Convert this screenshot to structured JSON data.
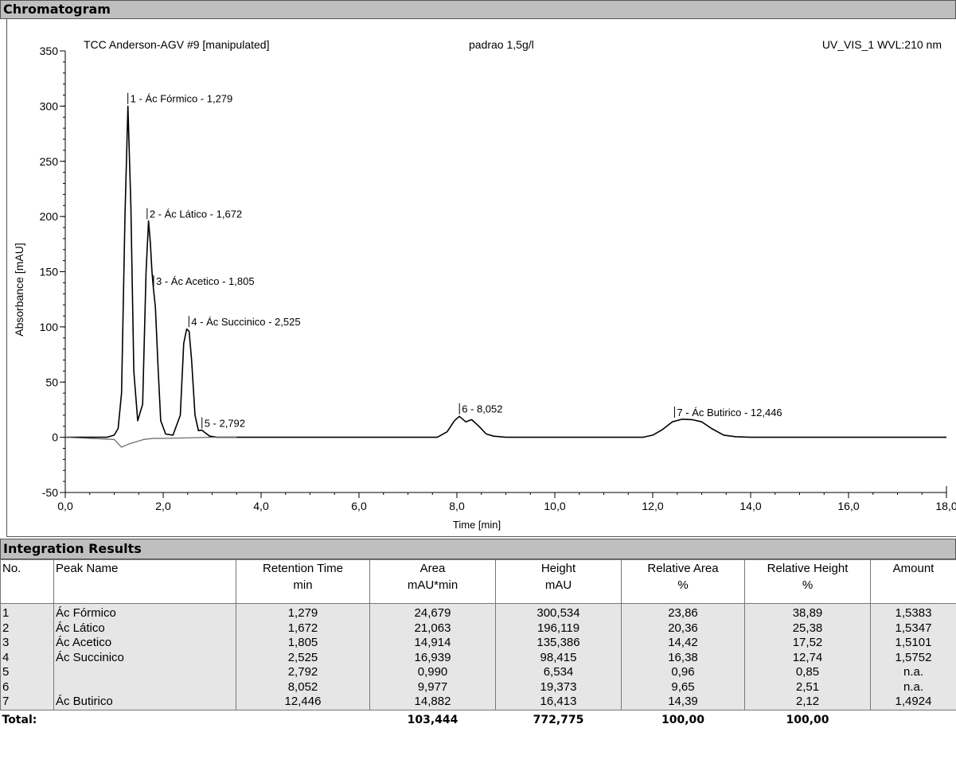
{
  "sections": {
    "chromatogram_title": "Chromatogram",
    "integration_title": "Integration Results"
  },
  "chart_data": {
    "type": "line",
    "header_left": "TCC Anderson-AGV #9 [manipulated]",
    "header_center": "padrao 1,5g/l",
    "header_right": "UV_VIS_1 WVL:210 nm",
    "xlabel": "Time [min]",
    "ylabel": "Absorbance [mAU]",
    "xlim": [
      0,
      18
    ],
    "ylim": [
      -50,
      350
    ],
    "x_ticks": [
      "0,0",
      "2,0",
      "4,0",
      "6,0",
      "8,0",
      "10,0",
      "12,0",
      "14,0",
      "16,0",
      "18,0"
    ],
    "y_ticks": [
      "-50",
      "0",
      "50",
      "100",
      "150",
      "200",
      "250",
      "300",
      "350"
    ],
    "series": [
      {
        "x": [
          0,
          0.85,
          1.0,
          1.08,
          1.15,
          1.22,
          1.28,
          1.34,
          1.4,
          1.48,
          1.58,
          1.65,
          1.7,
          1.74,
          1.77,
          1.8,
          1.84,
          1.9,
          1.95,
          2.05,
          2.2,
          2.35,
          2.42,
          2.48,
          2.53,
          2.58,
          2.65,
          2.72,
          2.79,
          2.86,
          2.95,
          3.1,
          4.0,
          6.0,
          7.6,
          7.8,
          7.95,
          8.05,
          8.18,
          8.3,
          8.45,
          8.6,
          8.75,
          9.0,
          10.0,
          11.0,
          11.8,
          12.0,
          12.2,
          12.4,
          12.6,
          12.8,
          13.0,
          13.2,
          13.45,
          13.7,
          14.0,
          16.0,
          18.0
        ],
        "y": [
          0,
          0,
          2,
          8,
          40,
          200,
          300,
          210,
          60,
          15,
          30,
          150,
          196,
          175,
          150,
          135,
          118,
          60,
          15,
          3,
          2,
          20,
          85,
          98,
          96,
          70,
          20,
          6,
          6.5,
          4,
          1,
          0,
          0,
          0,
          0,
          5,
          15,
          19,
          14,
          16,
          10,
          3,
          1,
          0,
          0,
          0,
          0,
          2,
          7,
          14,
          16.4,
          16,
          14,
          8,
          2,
          0.5,
          0,
          0,
          0
        ]
      },
      {
        "x": [
          0,
          1.0,
          1.15,
          1.3,
          1.45,
          1.6,
          1.8,
          2.0,
          2.5,
          3.0,
          3.5
        ],
        "y": [
          0,
          -2,
          -9,
          -6,
          -4,
          -2,
          -1,
          -1,
          -0.5,
          0,
          0
        ]
      }
    ],
    "peak_labels": [
      {
        "text": "1 - Ác Fórmico - 1,279",
        "x": 1.279,
        "y": 300.5
      },
      {
        "text": "2 - Ác Lático - 1,672",
        "x": 1.672,
        "y": 196.1
      },
      {
        "text": "3 - Ác Acetico - 1,805",
        "x": 1.805,
        "y": 135.4
      },
      {
        "text": "4 - Ác Succinico - 2,525",
        "x": 2.525,
        "y": 98.4
      },
      {
        "text": "5 - 2,792",
        "x": 2.792,
        "y": 6.5
      },
      {
        "text": "6 - 8,052",
        "x": 8.052,
        "y": 19.4
      },
      {
        "text": "7 - Ác Butirico - 12,446",
        "x": 12.446,
        "y": 16.4
      }
    ]
  },
  "table": {
    "headers": [
      [
        "No.",
        ""
      ],
      [
        "Peak Name",
        ""
      ],
      [
        "Retention Time",
        "min"
      ],
      [
        "Area",
        "mAU*min"
      ],
      [
        "Height",
        "mAU"
      ],
      [
        "Relative Area",
        "%"
      ],
      [
        "Relative Height",
        "%"
      ],
      [
        "Amount",
        ""
      ]
    ],
    "rows": [
      [
        "1",
        "Ác Fórmico",
        "1,279",
        "24,679",
        "300,534",
        "23,86",
        "38,89",
        "1,5383"
      ],
      [
        "2",
        "Ác Lático",
        "1,672",
        "21,063",
        "196,119",
        "20,36",
        "25,38",
        "1,5347"
      ],
      [
        "3",
        "Ác Acetico",
        "1,805",
        "14,914",
        "135,386",
        "14,42",
        "17,52",
        "1,5101"
      ],
      [
        "4",
        "Ác Succinico",
        "2,525",
        "16,939",
        "98,415",
        "16,38",
        "12,74",
        "1,5752"
      ],
      [
        "5",
        "",
        "2,792",
        "0,990",
        "6,534",
        "0,96",
        "0,85",
        "n.a."
      ],
      [
        "6",
        "",
        "8,052",
        "9,977",
        "19,373",
        "9,65",
        "2,51",
        "n.a."
      ],
      [
        "7",
        "Ác Butirico",
        "12,446",
        "14,882",
        "16,413",
        "14,39",
        "2,12",
        "1,4924"
      ]
    ],
    "total": {
      "label": "Total:",
      "area": "103,444",
      "height": "772,775",
      "relative_area": "100,00",
      "relative_height": "100,00"
    }
  }
}
